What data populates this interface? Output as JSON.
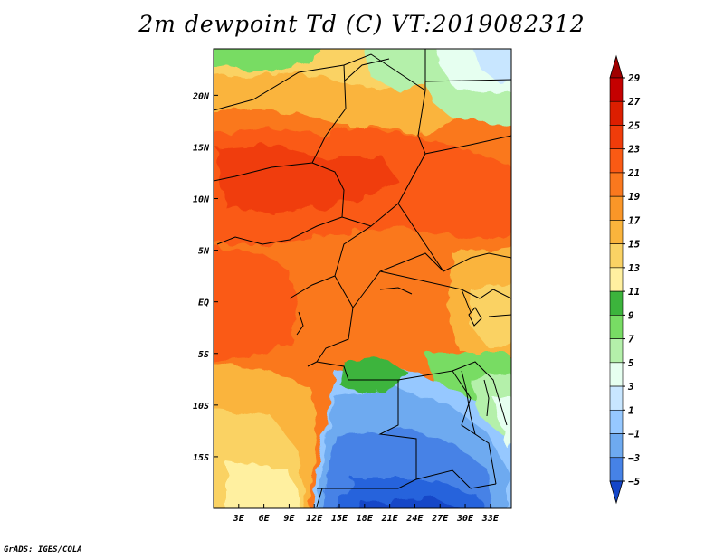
{
  "title": "2m dewpoint Td (C) VT:2019082312",
  "credit": "GrADS: IGES/COLA",
  "map": {
    "variable": "2m dewpoint",
    "units": "C",
    "valid_time": "2019082312",
    "lon_range": [
      0,
      35.5
    ],
    "lat_range": [
      -20,
      24.5
    ],
    "lon_ticks": [
      "3E",
      "6E",
      "9E",
      "12E",
      "15E",
      "18E",
      "21E",
      "24E",
      "27E",
      "30E",
      "33E"
    ],
    "lat_ticks": [
      "20N",
      "15N",
      "10N",
      "5N",
      "EQ",
      "5S",
      "10S",
      "15S"
    ]
  },
  "colorbar": {
    "labels": [
      "29",
      "27",
      "25",
      "23",
      "21",
      "19",
      "17",
      "15",
      "13",
      "11",
      "9",
      "7",
      "5",
      "3",
      "1",
      "−1",
      "−3",
      "−5"
    ],
    "colors": [
      "#c40000",
      "#dc1e00",
      "#f03c0a",
      "#fa5a14",
      "#fa781e",
      "#fa9628",
      "#fab43c",
      "#fad264",
      "#fff0a0",
      "#3cb43c",
      "#78dc64",
      "#b4f0aa",
      "#e6fff0",
      "#c8e6ff",
      "#96c8ff",
      "#6eaaf0",
      "#4682e6",
      "#2864dc",
      "#1446c8"
    ],
    "top_arrow_color": "#a00000",
    "bottom_arrow_color": "#1446c8"
  }
}
